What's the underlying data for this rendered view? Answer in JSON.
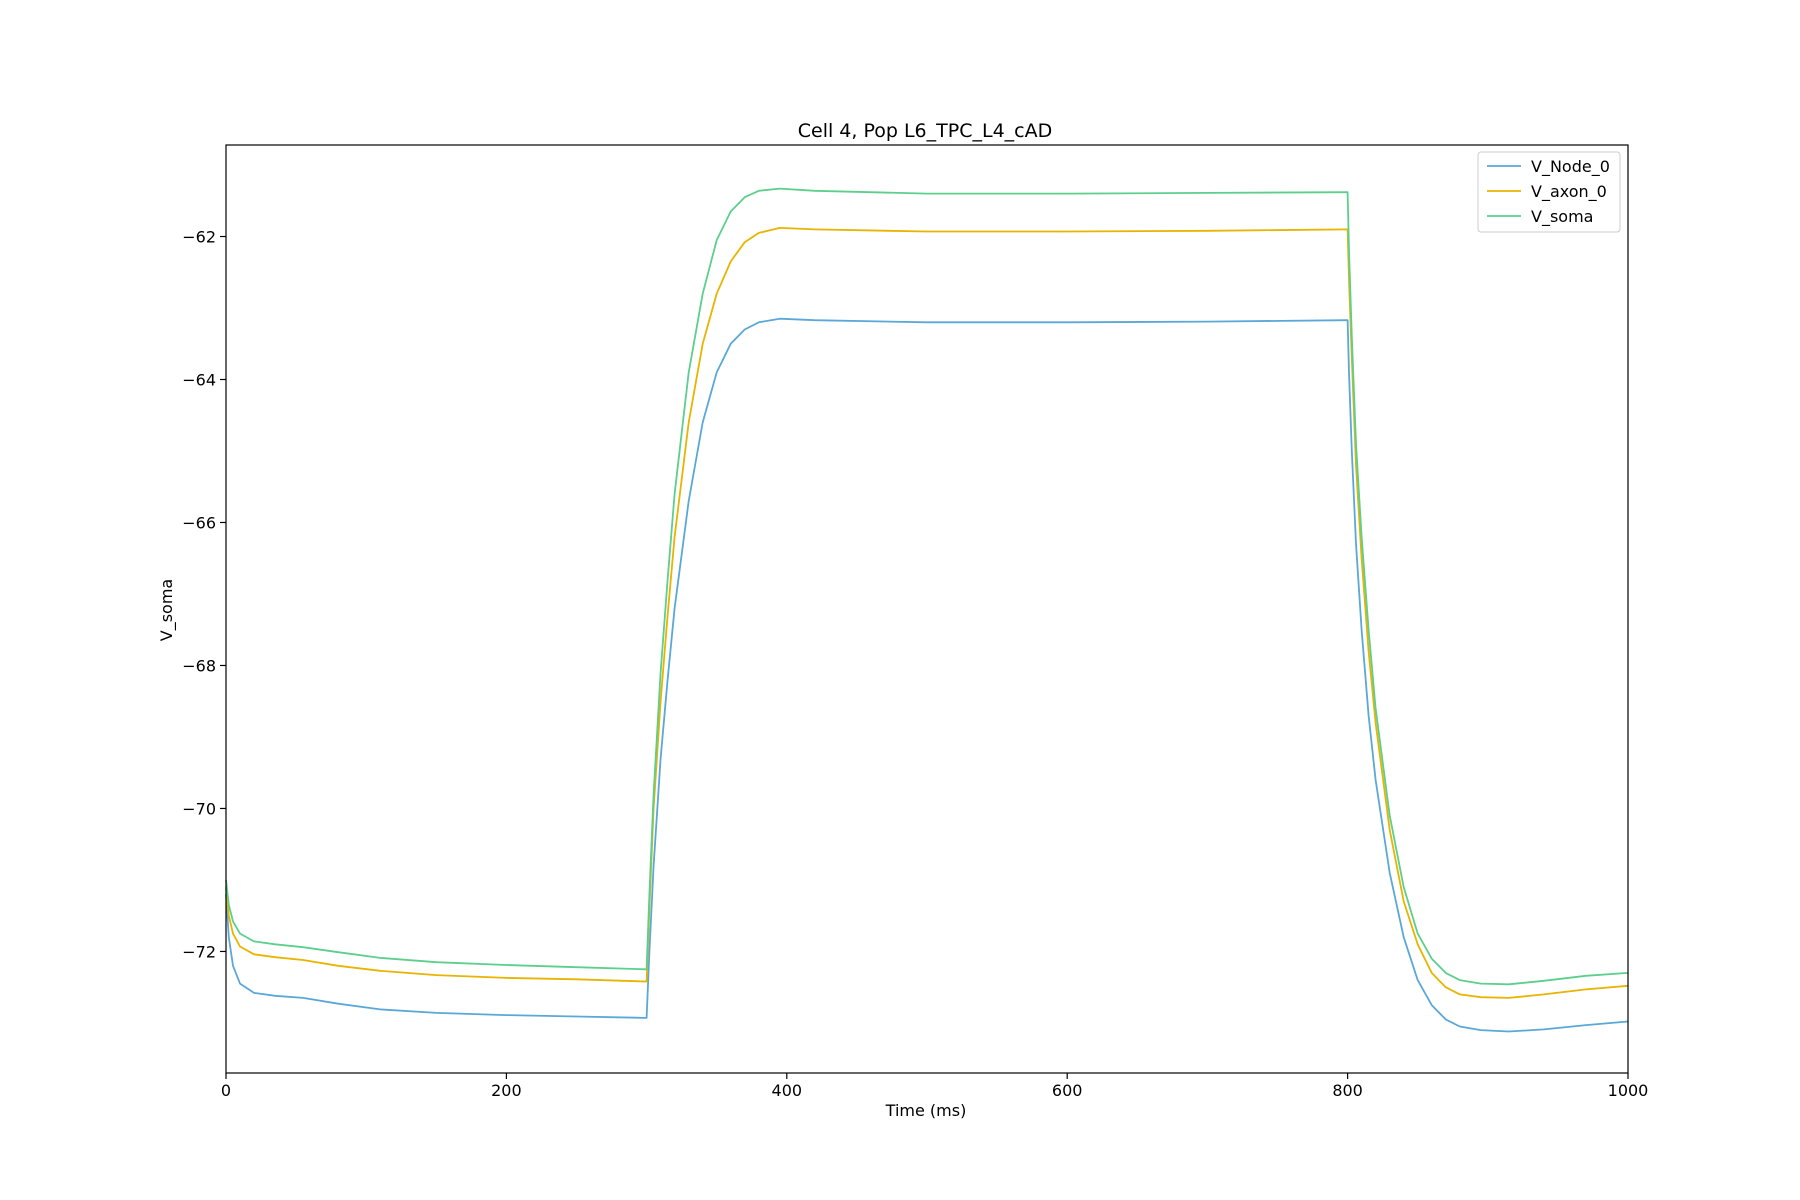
{
  "chart_data": {
    "type": "line",
    "title": "Cell 4, Pop L6_TPC_L4_cAD",
    "xlabel": "Time (ms)",
    "ylabel": "V_soma",
    "xlim": [
      0,
      1000
    ],
    "ylim": [
      -73.7,
      -60.72
    ],
    "x_ticks": [
      0,
      200,
      400,
      600,
      800,
      1000
    ],
    "x_tick_labels": [
      "0",
      "200",
      "400",
      "600",
      "800",
      "1000"
    ],
    "y_ticks": [
      -72,
      -70,
      -68,
      -66,
      -64,
      -62
    ],
    "y_tick_labels": [
      "−72",
      "−70",
      "−68",
      "−66",
      "−64",
      "−62"
    ],
    "grid": false,
    "legend_position": "top-right",
    "series": [
      {
        "name": "V_Node_0",
        "color": "#5aa8d8",
        "points": [
          [
            0,
            -71.2
          ],
          [
            2,
            -71.8
          ],
          [
            5,
            -72.2
          ],
          [
            10,
            -72.45
          ],
          [
            20,
            -72.58
          ],
          [
            35,
            -72.62
          ],
          [
            55,
            -72.65
          ],
          [
            80,
            -72.73
          ],
          [
            110,
            -72.81
          ],
          [
            150,
            -72.86
          ],
          [
            200,
            -72.89
          ],
          [
            250,
            -72.91
          ],
          [
            299,
            -72.93
          ],
          [
            300,
            -72.93
          ],
          [
            302,
            -72.0
          ],
          [
            305,
            -70.8
          ],
          [
            310,
            -69.3
          ],
          [
            315,
            -68.2
          ],
          [
            320,
            -67.2
          ],
          [
            330,
            -65.7
          ],
          [
            340,
            -64.6
          ],
          [
            350,
            -63.9
          ],
          [
            360,
            -63.5
          ],
          [
            370,
            -63.3
          ],
          [
            380,
            -63.2
          ],
          [
            395,
            -63.15
          ],
          [
            420,
            -63.17
          ],
          [
            500,
            -63.2
          ],
          [
            600,
            -63.2
          ],
          [
            700,
            -63.19
          ],
          [
            799,
            -63.17
          ],
          [
            800,
            -63.17
          ],
          [
            801,
            -63.9
          ],
          [
            803,
            -65.0
          ],
          [
            806,
            -66.3
          ],
          [
            810,
            -67.5
          ],
          [
            815,
            -68.7
          ],
          [
            820,
            -69.6
          ],
          [
            830,
            -70.9
          ],
          [
            840,
            -71.8
          ],
          [
            850,
            -72.4
          ],
          [
            860,
            -72.75
          ],
          [
            870,
            -72.95
          ],
          [
            880,
            -73.05
          ],
          [
            895,
            -73.1
          ],
          [
            915,
            -73.12
          ],
          [
            940,
            -73.09
          ],
          [
            970,
            -73.03
          ],
          [
            1000,
            -72.98
          ]
        ]
      },
      {
        "name": "V_axon_0",
        "color": "#e8b400",
        "points": [
          [
            0,
            -71.1
          ],
          [
            2,
            -71.5
          ],
          [
            5,
            -71.75
          ],
          [
            10,
            -71.93
          ],
          [
            20,
            -72.04
          ],
          [
            35,
            -72.08
          ],
          [
            55,
            -72.12
          ],
          [
            80,
            -72.2
          ],
          [
            110,
            -72.27
          ],
          [
            150,
            -72.33
          ],
          [
            200,
            -72.37
          ],
          [
            250,
            -72.39
          ],
          [
            299,
            -72.42
          ],
          [
            300,
            -72.42
          ],
          [
            302,
            -71.4
          ],
          [
            305,
            -70.0
          ],
          [
            310,
            -68.5
          ],
          [
            315,
            -67.3
          ],
          [
            320,
            -66.2
          ],
          [
            330,
            -64.6
          ],
          [
            340,
            -63.5
          ],
          [
            350,
            -62.8
          ],
          [
            360,
            -62.35
          ],
          [
            370,
            -62.08
          ],
          [
            380,
            -61.95
          ],
          [
            395,
            -61.88
          ],
          [
            420,
            -61.9
          ],
          [
            500,
            -61.93
          ],
          [
            600,
            -61.93
          ],
          [
            700,
            -61.92
          ],
          [
            799,
            -61.9
          ],
          [
            800,
            -61.9
          ],
          [
            801,
            -62.6
          ],
          [
            803,
            -63.7
          ],
          [
            806,
            -65.2
          ],
          [
            810,
            -66.5
          ],
          [
            815,
            -67.8
          ],
          [
            820,
            -68.8
          ],
          [
            830,
            -70.3
          ],
          [
            840,
            -71.3
          ],
          [
            850,
            -71.9
          ],
          [
            860,
            -72.3
          ],
          [
            870,
            -72.5
          ],
          [
            880,
            -72.6
          ],
          [
            895,
            -72.64
          ],
          [
            915,
            -72.65
          ],
          [
            940,
            -72.6
          ],
          [
            970,
            -72.53
          ],
          [
            1000,
            -72.48
          ]
        ]
      },
      {
        "name": "V_soma",
        "color": "#5ccf8c",
        "points": [
          [
            0,
            -71.0
          ],
          [
            2,
            -71.35
          ],
          [
            5,
            -71.58
          ],
          [
            10,
            -71.75
          ],
          [
            20,
            -71.86
          ],
          [
            35,
            -71.9
          ],
          [
            55,
            -71.94
          ],
          [
            80,
            -72.01
          ],
          [
            110,
            -72.09
          ],
          [
            150,
            -72.15
          ],
          [
            200,
            -72.19
          ],
          [
            250,
            -72.22
          ],
          [
            299,
            -72.25
          ],
          [
            300,
            -72.25
          ],
          [
            302,
            -71.2
          ],
          [
            305,
            -69.8
          ],
          [
            310,
            -68.1
          ],
          [
            315,
            -66.8
          ],
          [
            320,
            -65.6
          ],
          [
            330,
            -63.9
          ],
          [
            340,
            -62.8
          ],
          [
            350,
            -62.05
          ],
          [
            360,
            -61.65
          ],
          [
            370,
            -61.45
          ],
          [
            380,
            -61.36
          ],
          [
            395,
            -61.33
          ],
          [
            420,
            -61.36
          ],
          [
            500,
            -61.4
          ],
          [
            600,
            -61.4
          ],
          [
            700,
            -61.39
          ],
          [
            799,
            -61.38
          ],
          [
            800,
            -61.38
          ],
          [
            801,
            -62.2
          ],
          [
            803,
            -63.4
          ],
          [
            806,
            -64.9
          ],
          [
            810,
            -66.2
          ],
          [
            815,
            -67.5
          ],
          [
            820,
            -68.6
          ],
          [
            830,
            -70.1
          ],
          [
            840,
            -71.1
          ],
          [
            850,
            -71.75
          ],
          [
            860,
            -72.1
          ],
          [
            870,
            -72.3
          ],
          [
            880,
            -72.4
          ],
          [
            895,
            -72.45
          ],
          [
            915,
            -72.46
          ],
          [
            940,
            -72.41
          ],
          [
            970,
            -72.34
          ],
          [
            1000,
            -72.3
          ]
        ]
      }
    ]
  }
}
